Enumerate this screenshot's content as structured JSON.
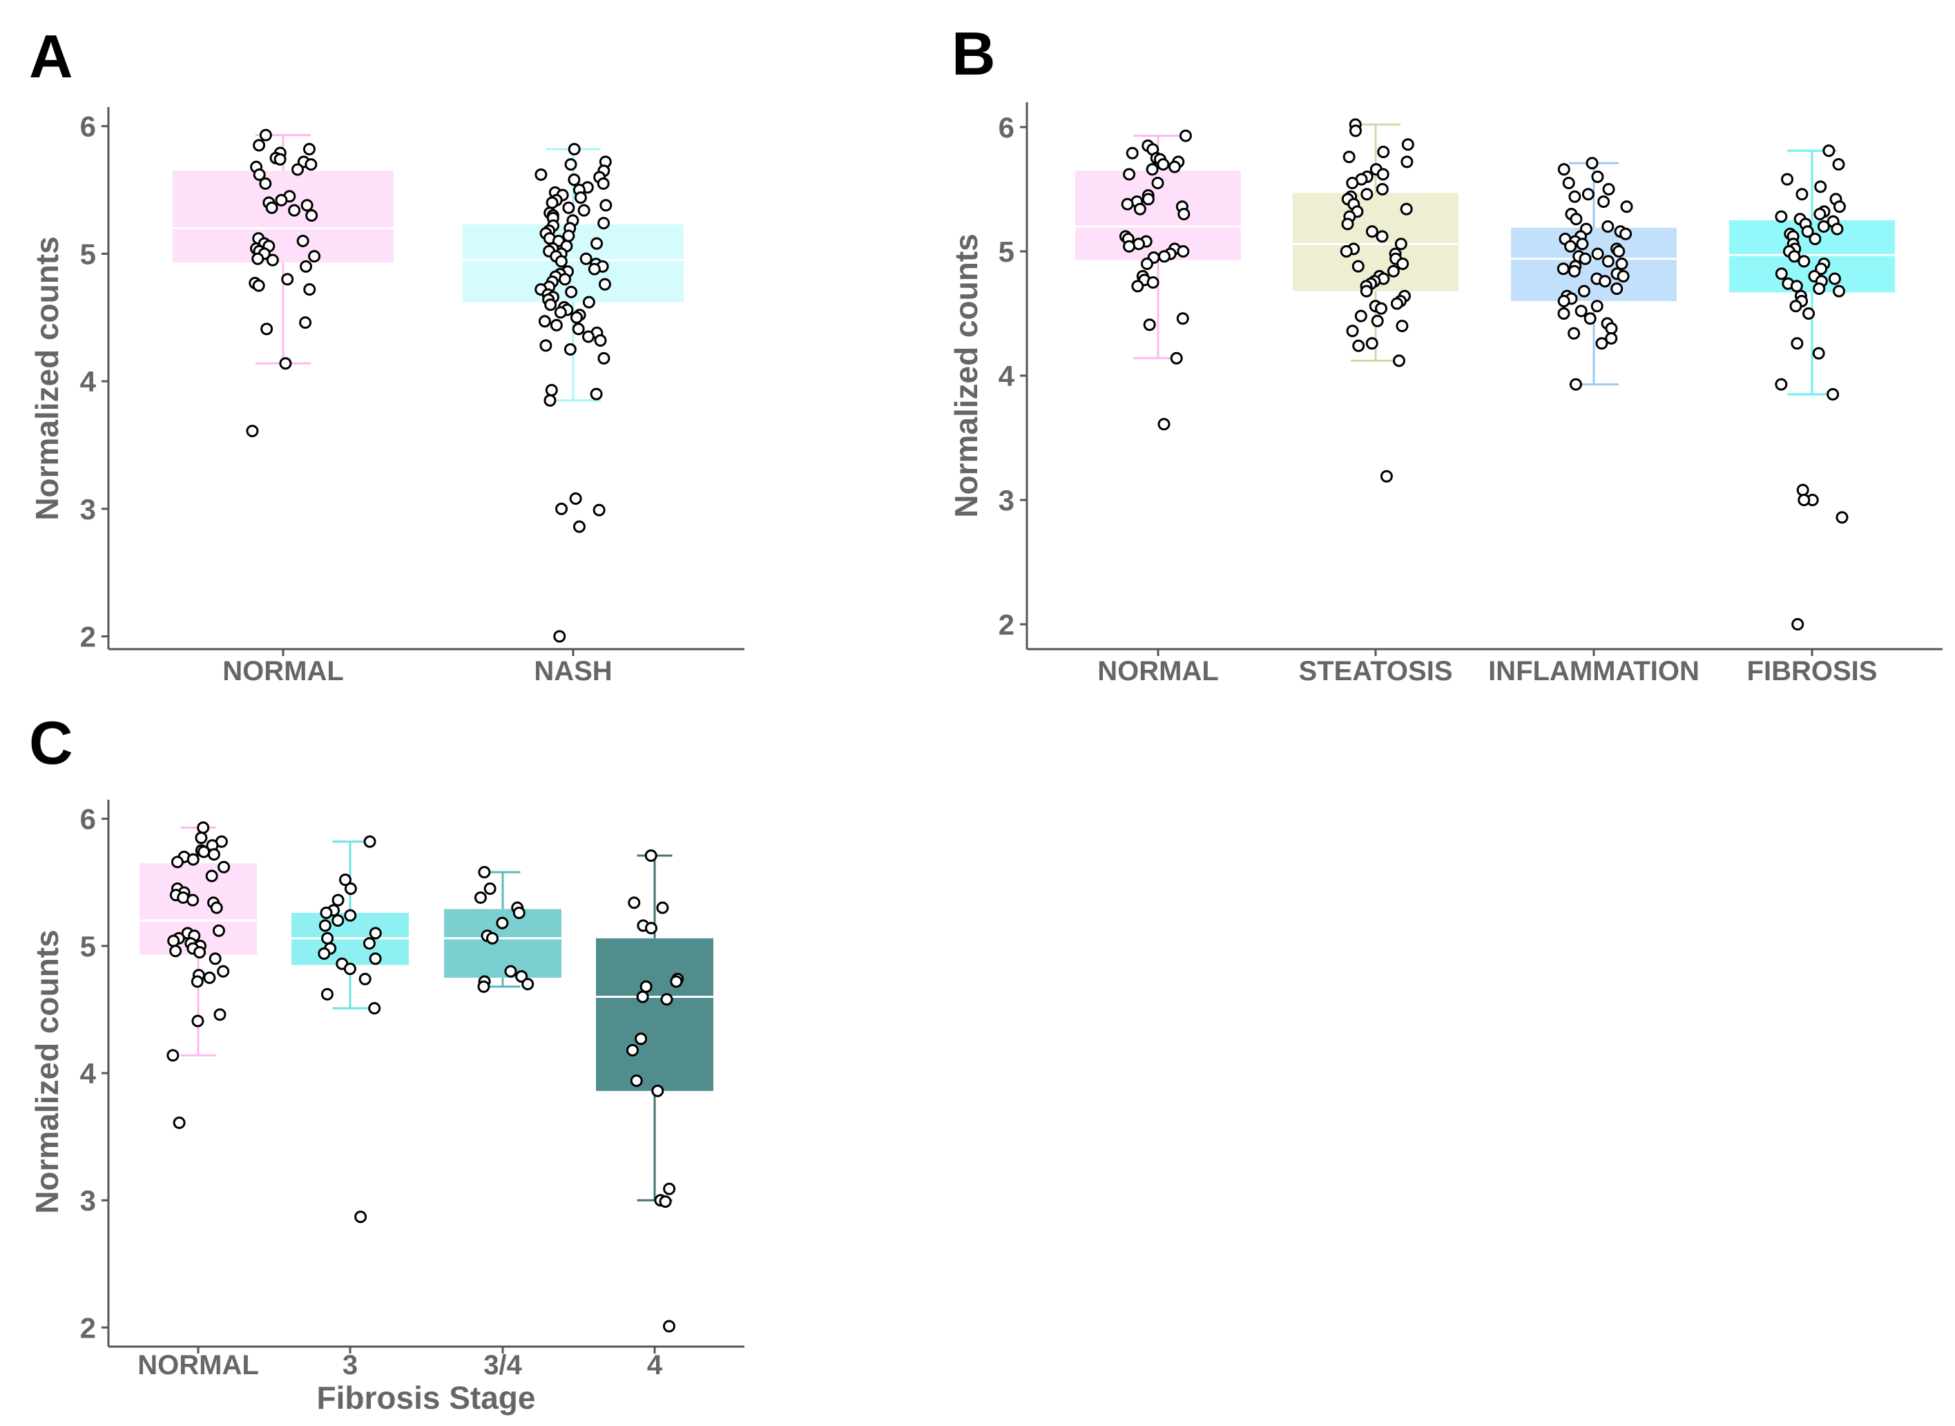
{
  "chart_data": [
    {
      "panel": "A",
      "type": "box",
      "ylabel": "Normalized counts",
      "xlabel": "",
      "ylim": [
        1.9,
        6.15
      ],
      "yticks": [
        "2",
        "3",
        "4",
        "5",
        "6"
      ],
      "categories": [
        "NORMAL",
        "NASH"
      ],
      "boxes": [
        {
          "name": "NORMAL",
          "color": "#ffe0fa",
          "whisker_color": "#ffb8f2",
          "q1": 4.93,
          "median": 5.2,
          "q3": 5.65,
          "low": 4.14,
          "high": 5.93,
          "points": [
            5.93,
            5.85,
            5.82,
            5.79,
            5.75,
            5.74,
            5.72,
            5.7,
            5.68,
            5.66,
            5.62,
            5.55,
            5.45,
            5.42,
            5.4,
            5.38,
            5.36,
            5.34,
            5.3,
            5.12,
            5.1,
            5.08,
            5.06,
            5.04,
            5.02,
            5.0,
            4.98,
            4.96,
            4.95,
            4.9,
            4.8,
            4.77,
            4.75,
            4.72,
            4.46,
            4.41,
            4.14,
            3.61
          ]
        },
        {
          "name": "NASH",
          "color": "#d4fcfd",
          "whisker_color": "#a8f4f7",
          "q1": 4.62,
          "median": 4.95,
          "q3": 5.23,
          "low": 3.85,
          "high": 5.82,
          "points": [
            5.82,
            5.72,
            5.7,
            5.65,
            5.62,
            5.6,
            5.58,
            5.55,
            5.52,
            5.5,
            5.48,
            5.46,
            5.44,
            5.42,
            5.4,
            5.38,
            5.36,
            5.34,
            5.32,
            5.3,
            5.28,
            5.26,
            5.24,
            5.22,
            5.2,
            5.18,
            5.16,
            5.14,
            5.12,
            5.1,
            5.08,
            5.06,
            5.04,
            5.02,
            5.0,
            4.98,
            4.96,
            4.94,
            4.92,
            4.9,
            4.88,
            4.86,
            4.84,
            4.82,
            4.8,
            4.78,
            4.76,
            4.74,
            4.72,
            4.7,
            4.68,
            4.66,
            4.64,
            4.62,
            4.6,
            4.58,
            4.56,
            4.54,
            4.52,
            4.5,
            4.47,
            4.44,
            4.41,
            4.38,
            4.35,
            4.32,
            4.28,
            4.25,
            4.18,
            3.93,
            3.9,
            3.85,
            3.08,
            3.0,
            2.99,
            2.86,
            2.0
          ]
        }
      ]
    },
    {
      "panel": "B",
      "type": "box",
      "ylabel": "Normalized counts",
      "xlabel": "",
      "ylim": [
        1.8,
        6.2
      ],
      "yticks": [
        "2",
        "3",
        "4",
        "5",
        "6"
      ],
      "categories": [
        "NORMAL",
        "STEATOSIS",
        "INFLAMMATION",
        "FIBROSIS"
      ],
      "boxes": [
        {
          "name": "NORMAL",
          "color": "#ffe0fa",
          "whisker_color": "#ffb8f2",
          "q1": 4.93,
          "median": 5.2,
          "q3": 5.65,
          "low": 4.14,
          "high": 5.93,
          "points": [
            5.93,
            5.85,
            5.82,
            5.79,
            5.75,
            5.74,
            5.72,
            5.7,
            5.68,
            5.66,
            5.62,
            5.55,
            5.45,
            5.42,
            5.4,
            5.38,
            5.36,
            5.34,
            5.3,
            5.12,
            5.1,
            5.08,
            5.06,
            5.04,
            5.02,
            5.0,
            4.98,
            4.96,
            4.95,
            4.9,
            4.8,
            4.77,
            4.75,
            4.72,
            4.46,
            4.41,
            4.14,
            3.61
          ]
        },
        {
          "name": "STEATOSIS",
          "color": "#eeeed2",
          "whisker_color": "#d6d6a6",
          "q1": 4.68,
          "median": 5.06,
          "q3": 5.47,
          "low": 4.12,
          "high": 6.02,
          "points": [
            6.02,
            5.97,
            5.86,
            5.8,
            5.76,
            5.72,
            5.66,
            5.62,
            5.6,
            5.58,
            5.55,
            5.5,
            5.46,
            5.44,
            5.42,
            5.38,
            5.34,
            5.32,
            5.28,
            5.22,
            5.16,
            5.12,
            5.06,
            5.02,
            5.0,
            4.98,
            4.94,
            4.9,
            4.88,
            4.84,
            4.8,
            4.78,
            4.76,
            4.74,
            4.72,
            4.68,
            4.64,
            4.6,
            4.58,
            4.56,
            4.54,
            4.48,
            4.44,
            4.4,
            4.36,
            4.26,
            4.24,
            4.12,
            3.19
          ]
        },
        {
          "name": "INFLAMMATION",
          "color": "#c2e0fb",
          "whisker_color": "#9ccaf3",
          "q1": 4.6,
          "median": 4.94,
          "q3": 5.19,
          "low": 3.93,
          "high": 5.71,
          "points": [
            5.71,
            5.66,
            5.6,
            5.55,
            5.5,
            5.46,
            5.44,
            5.4,
            5.36,
            5.3,
            5.26,
            5.2,
            5.18,
            5.16,
            5.14,
            5.12,
            5.1,
            5.08,
            5.06,
            5.04,
            5.02,
            5.0,
            4.98,
            4.96,
            4.94,
            4.92,
            4.9,
            4.88,
            4.86,
            4.84,
            4.82,
            4.8,
            4.78,
            4.76,
            4.7,
            4.68,
            4.64,
            4.62,
            4.6,
            4.56,
            4.52,
            4.5,
            4.46,
            4.42,
            4.38,
            4.34,
            4.3,
            4.26,
            3.93
          ]
        },
        {
          "name": "FIBROSIS",
          "color": "#93f8f9",
          "whisker_color": "#6ff0f2",
          "q1": 4.67,
          "median": 4.97,
          "q3": 5.25,
          "low": 3.85,
          "high": 5.81,
          "points": [
            5.81,
            5.7,
            5.58,
            5.52,
            5.46,
            5.42,
            5.36,
            5.32,
            5.3,
            5.28,
            5.26,
            5.24,
            5.22,
            5.2,
            5.18,
            5.16,
            5.14,
            5.12,
            5.1,
            5.06,
            5.02,
            5.0,
            4.96,
            4.92,
            4.9,
            4.86,
            4.82,
            4.8,
            4.78,
            4.76,
            4.74,
            4.72,
            4.7,
            4.68,
            4.64,
            4.6,
            4.56,
            4.5,
            4.26,
            4.18,
            3.93,
            3.85,
            3.08,
            3.0,
            3.0,
            2.86,
            2.0
          ]
        }
      ]
    },
    {
      "panel": "C",
      "type": "box",
      "ylabel": "Normalized counts",
      "xlabel": "Fibrosis Stage",
      "ylim": [
        1.85,
        6.15
      ],
      "yticks": [
        "2",
        "3",
        "4",
        "5",
        "6"
      ],
      "categories": [
        "NORMAL",
        "3",
        "3/4",
        "4"
      ],
      "boxes": [
        {
          "name": "NORMAL",
          "color": "#ffe0fa",
          "whisker_color": "#ffb8f2",
          "q1": 4.93,
          "median": 5.2,
          "q3": 5.65,
          "low": 4.14,
          "high": 5.93,
          "points": [
            5.93,
            5.85,
            5.82,
            5.79,
            5.75,
            5.74,
            5.72,
            5.7,
            5.68,
            5.66,
            5.62,
            5.55,
            5.45,
            5.42,
            5.4,
            5.38,
            5.36,
            5.34,
            5.3,
            5.12,
            5.1,
            5.08,
            5.06,
            5.04,
            5.02,
            5.0,
            4.98,
            4.96,
            4.95,
            4.9,
            4.8,
            4.77,
            4.75,
            4.72,
            4.46,
            4.41,
            4.14,
            3.61
          ]
        },
        {
          "name": "3",
          "color": "#8ef0f0",
          "whisker_color": "#6ee4e6",
          "q1": 4.85,
          "median": 5.06,
          "q3": 5.26,
          "low": 4.51,
          "high": 5.82,
          "points": [
            5.82,
            5.52,
            5.45,
            5.36,
            5.28,
            5.26,
            5.24,
            5.2,
            5.16,
            5.1,
            5.06,
            5.02,
            4.98,
            4.94,
            4.9,
            4.86,
            4.82,
            4.74,
            4.62,
            4.51,
            2.87
          ]
        },
        {
          "name": "3/4",
          "color": "#7ccfd0",
          "whisker_color": "#5cb8b9",
          "q1": 4.75,
          "median": 5.06,
          "q3": 5.29,
          "low": 4.68,
          "high": 5.58,
          "points": [
            5.58,
            5.45,
            5.38,
            5.3,
            5.26,
            5.18,
            5.08,
            5.06,
            4.8,
            4.76,
            4.72,
            4.7,
            4.68
          ]
        },
        {
          "name": "4",
          "color": "#508d8c",
          "whisker_color": "#3f7675",
          "q1": 3.86,
          "median": 4.6,
          "q3": 5.06,
          "low": 3.0,
          "high": 5.71,
          "points": [
            5.71,
            5.34,
            5.3,
            5.16,
            5.14,
            4.74,
            4.72,
            4.68,
            4.6,
            4.58,
            4.27,
            4.18,
            3.94,
            3.86,
            3.09,
            3.0,
            2.99,
            2.01
          ]
        }
      ]
    }
  ]
}
